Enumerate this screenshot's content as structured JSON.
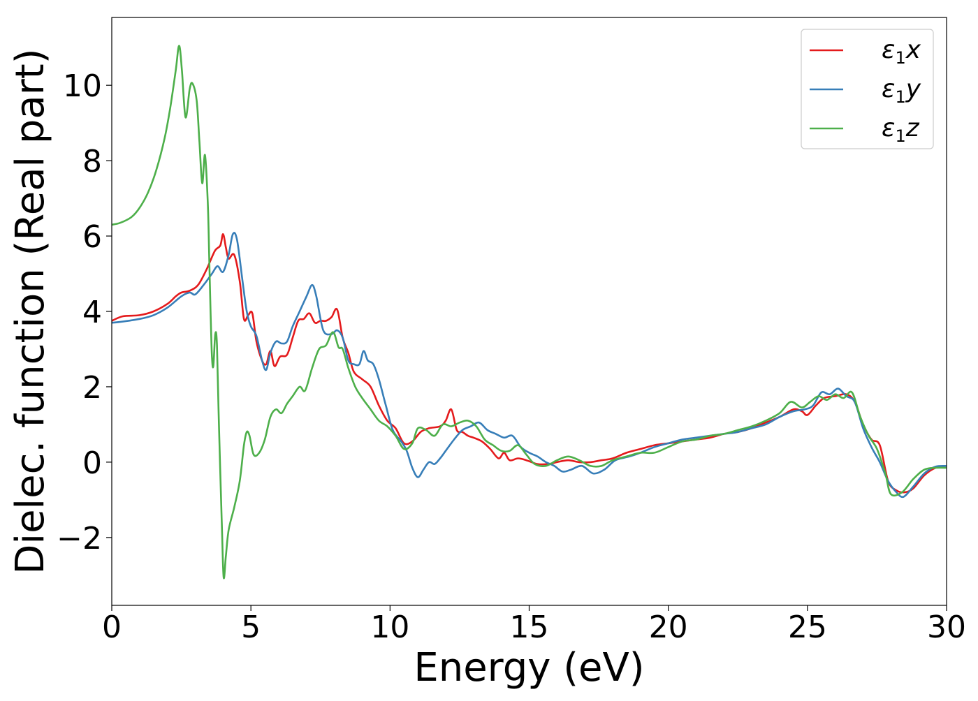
{
  "chart_data": {
    "type": "line",
    "title": "",
    "xlabel": "Energy (eV)",
    "ylabel": "Dielec. function (Real part)",
    "xlim": [
      0,
      30
    ],
    "ylim": [
      -3.8,
      11.8
    ],
    "xticks": [
      0,
      5,
      10,
      15,
      20,
      25,
      30
    ],
    "xtick_labels": [
      "0",
      "5",
      "10",
      "15",
      "20",
      "25",
      "30"
    ],
    "yticks": [
      -2,
      0,
      2,
      4,
      6,
      8,
      10
    ],
    "ytick_labels": [
      "−2",
      "0",
      "2",
      "4",
      "6",
      "8",
      "10"
    ],
    "grid": false,
    "legend_position": "top-right",
    "series": [
      {
        "name": "ε₁x",
        "legend_base": "ε",
        "legend_sub": "1",
        "legend_var": "x",
        "color": "#e41a1c",
        "points": [
          [
            0,
            3.75
          ],
          [
            0.4,
            3.87
          ],
          [
            1,
            3.9
          ],
          [
            1.5,
            4.0
          ],
          [
            2,
            4.2
          ],
          [
            2.3,
            4.4
          ],
          [
            2.5,
            4.5
          ],
          [
            2.8,
            4.55
          ],
          [
            3.1,
            4.7
          ],
          [
            3.4,
            5.1
          ],
          [
            3.7,
            5.6
          ],
          [
            3.9,
            5.75
          ],
          [
            4.0,
            6.05
          ],
          [
            4.1,
            5.7
          ],
          [
            4.2,
            5.4
          ],
          [
            4.4,
            5.5
          ],
          [
            4.6,
            4.8
          ],
          [
            4.75,
            3.8
          ],
          [
            4.9,
            3.9
          ],
          [
            5.05,
            3.95
          ],
          [
            5.2,
            3.2
          ],
          [
            5.4,
            2.7
          ],
          [
            5.55,
            2.6
          ],
          [
            5.7,
            2.95
          ],
          [
            5.85,
            2.55
          ],
          [
            6.05,
            2.8
          ],
          [
            6.3,
            2.85
          ],
          [
            6.5,
            3.3
          ],
          [
            6.7,
            3.75
          ],
          [
            6.9,
            3.8
          ],
          [
            7.1,
            3.95
          ],
          [
            7.3,
            3.7
          ],
          [
            7.5,
            3.75
          ],
          [
            7.7,
            3.75
          ],
          [
            7.9,
            3.85
          ],
          [
            8.1,
            4.05
          ],
          [
            8.3,
            3.3
          ],
          [
            8.5,
            2.9
          ],
          [
            8.7,
            2.4
          ],
          [
            9.0,
            2.2
          ],
          [
            9.3,
            2.0
          ],
          [
            9.6,
            1.5
          ],
          [
            9.9,
            1.1
          ],
          [
            10.2,
            0.9
          ],
          [
            10.5,
            0.5
          ],
          [
            10.8,
            0.55
          ],
          [
            11.1,
            0.8
          ],
          [
            11.4,
            0.9
          ],
          [
            11.8,
            0.95
          ],
          [
            12.0,
            1.1
          ],
          [
            12.2,
            1.4
          ],
          [
            12.4,
            0.85
          ],
          [
            12.6,
            0.8
          ],
          [
            12.8,
            0.7
          ],
          [
            13.0,
            0.65
          ],
          [
            13.3,
            0.55
          ],
          [
            13.6,
            0.35
          ],
          [
            13.9,
            0.1
          ],
          [
            14.1,
            0.25
          ],
          [
            14.3,
            0.05
          ],
          [
            14.6,
            0.1
          ],
          [
            14.9,
            0.05
          ],
          [
            15.3,
            -0.05
          ],
          [
            15.7,
            -0.05
          ],
          [
            16.0,
            0.0
          ],
          [
            16.4,
            0.05
          ],
          [
            16.8,
            0.0
          ],
          [
            17.2,
            0.0
          ],
          [
            17.6,
            0.05
          ],
          [
            18.0,
            0.1
          ],
          [
            18.5,
            0.25
          ],
          [
            19.0,
            0.35
          ],
          [
            19.5,
            0.45
          ],
          [
            20.0,
            0.5
          ],
          [
            20.5,
            0.55
          ],
          [
            21.0,
            0.6
          ],
          [
            21.5,
            0.65
          ],
          [
            22.0,
            0.75
          ],
          [
            22.5,
            0.8
          ],
          [
            23.0,
            0.9
          ],
          [
            23.5,
            1.05
          ],
          [
            24.0,
            1.2
          ],
          [
            24.5,
            1.4
          ],
          [
            24.8,
            1.35
          ],
          [
            25.0,
            1.25
          ],
          [
            25.3,
            1.5
          ],
          [
            25.6,
            1.7
          ],
          [
            26.0,
            1.75
          ],
          [
            26.4,
            1.8
          ],
          [
            26.7,
            1.6
          ],
          [
            27.0,
            1.0
          ],
          [
            27.3,
            0.6
          ],
          [
            27.6,
            0.45
          ],
          [
            27.9,
            -0.5
          ],
          [
            28.2,
            -0.75
          ],
          [
            28.5,
            -0.8
          ],
          [
            28.8,
            -0.7
          ],
          [
            29.2,
            -0.35
          ],
          [
            29.6,
            -0.15
          ],
          [
            30,
            -0.1
          ]
        ]
      },
      {
        "name": "ε₁y",
        "legend_base": "ε",
        "legend_sub": "1",
        "legend_var": "y",
        "color": "#377eb8",
        "points": [
          [
            0,
            3.7
          ],
          [
            0.3,
            3.72
          ],
          [
            1,
            3.8
          ],
          [
            1.5,
            3.9
          ],
          [
            2,
            4.1
          ],
          [
            2.5,
            4.4
          ],
          [
            2.8,
            4.5
          ],
          [
            3.0,
            4.45
          ],
          [
            3.3,
            4.7
          ],
          [
            3.6,
            5.0
          ],
          [
            3.8,
            5.2
          ],
          [
            4.0,
            5.05
          ],
          [
            4.2,
            5.5
          ],
          [
            4.35,
            6.05
          ],
          [
            4.5,
            5.9
          ],
          [
            4.7,
            4.8
          ],
          [
            4.85,
            4.0
          ],
          [
            5.0,
            3.6
          ],
          [
            5.2,
            3.35
          ],
          [
            5.4,
            2.7
          ],
          [
            5.55,
            2.45
          ],
          [
            5.7,
            2.9
          ],
          [
            5.9,
            3.2
          ],
          [
            6.1,
            3.15
          ],
          [
            6.3,
            3.2
          ],
          [
            6.5,
            3.6
          ],
          [
            6.75,
            4.0
          ],
          [
            7.0,
            4.4
          ],
          [
            7.2,
            4.7
          ],
          [
            7.35,
            4.4
          ],
          [
            7.6,
            3.5
          ],
          [
            7.9,
            3.4
          ],
          [
            8.1,
            3.5
          ],
          [
            8.3,
            3.3
          ],
          [
            8.5,
            2.7
          ],
          [
            8.7,
            2.6
          ],
          [
            8.9,
            2.6
          ],
          [
            9.05,
            2.95
          ],
          [
            9.2,
            2.7
          ],
          [
            9.4,
            2.6
          ],
          [
            9.6,
            2.2
          ],
          [
            9.85,
            1.5
          ],
          [
            10.1,
            0.85
          ],
          [
            10.4,
            0.55
          ],
          [
            10.6,
            0.3
          ],
          [
            10.8,
            -0.15
          ],
          [
            11.0,
            -0.4
          ],
          [
            11.2,
            -0.2
          ],
          [
            11.4,
            0.0
          ],
          [
            11.6,
            -0.05
          ],
          [
            11.8,
            0.1
          ],
          [
            12.0,
            0.3
          ],
          [
            12.3,
            0.6
          ],
          [
            12.6,
            0.85
          ],
          [
            12.9,
            0.95
          ],
          [
            13.2,
            1.05
          ],
          [
            13.5,
            0.85
          ],
          [
            13.8,
            0.75
          ],
          [
            14.1,
            0.65
          ],
          [
            14.4,
            0.7
          ],
          [
            14.7,
            0.4
          ],
          [
            15.0,
            0.25
          ],
          [
            15.3,
            0.15
          ],
          [
            15.6,
            0.0
          ],
          [
            15.9,
            -0.1
          ],
          [
            16.2,
            -0.25
          ],
          [
            16.5,
            -0.2
          ],
          [
            16.9,
            -0.1
          ],
          [
            17.3,
            -0.3
          ],
          [
            17.7,
            -0.2
          ],
          [
            18.1,
            0.05
          ],
          [
            18.6,
            0.15
          ],
          [
            19.0,
            0.25
          ],
          [
            19.5,
            0.4
          ],
          [
            20.0,
            0.5
          ],
          [
            20.5,
            0.6
          ],
          [
            21.0,
            0.65
          ],
          [
            21.5,
            0.7
          ],
          [
            22.0,
            0.75
          ],
          [
            22.5,
            0.8
          ],
          [
            23.0,
            0.9
          ],
          [
            23.5,
            1.0
          ],
          [
            24.0,
            1.2
          ],
          [
            24.5,
            1.35
          ],
          [
            24.9,
            1.4
          ],
          [
            25.2,
            1.5
          ],
          [
            25.5,
            1.85
          ],
          [
            25.8,
            1.8
          ],
          [
            26.1,
            1.95
          ],
          [
            26.4,
            1.75
          ],
          [
            26.7,
            1.6
          ],
          [
            27.0,
            0.9
          ],
          [
            27.3,
            0.4
          ],
          [
            27.6,
            0.0
          ],
          [
            27.9,
            -0.5
          ],
          [
            28.2,
            -0.8
          ],
          [
            28.45,
            -0.92
          ],
          [
            28.8,
            -0.65
          ],
          [
            29.2,
            -0.3
          ],
          [
            29.6,
            -0.12
          ],
          [
            30,
            -0.1
          ]
        ]
      },
      {
        "name": "ε₁z",
        "legend_base": "ε",
        "legend_sub": "1",
        "legend_var": "z",
        "color": "#4daf4a",
        "points": [
          [
            0,
            6.3
          ],
          [
            0.3,
            6.35
          ],
          [
            0.7,
            6.5
          ],
          [
            1.0,
            6.75
          ],
          [
            1.3,
            7.15
          ],
          [
            1.6,
            7.75
          ],
          [
            1.9,
            8.6
          ],
          [
            2.1,
            9.4
          ],
          [
            2.3,
            10.4
          ],
          [
            2.42,
            11.05
          ],
          [
            2.52,
            10.4
          ],
          [
            2.65,
            9.15
          ],
          [
            2.8,
            9.9
          ],
          [
            2.9,
            10.05
          ],
          [
            3.05,
            9.6
          ],
          [
            3.15,
            8.5
          ],
          [
            3.25,
            7.4
          ],
          [
            3.35,
            8.15
          ],
          [
            3.45,
            6.9
          ],
          [
            3.5,
            5.5
          ],
          [
            3.55,
            4.0
          ],
          [
            3.6,
            2.8
          ],
          [
            3.65,
            2.55
          ],
          [
            3.72,
            3.4
          ],
          [
            3.78,
            3.1
          ],
          [
            3.85,
            1.0
          ],
          [
            3.95,
            -1.5
          ],
          [
            4.02,
            -3.05
          ],
          [
            4.1,
            -2.5
          ],
          [
            4.2,
            -1.8
          ],
          [
            4.4,
            -1.2
          ],
          [
            4.6,
            -0.5
          ],
          [
            4.75,
            0.45
          ],
          [
            4.85,
            0.8
          ],
          [
            4.95,
            0.7
          ],
          [
            5.1,
            0.2
          ],
          [
            5.3,
            0.25
          ],
          [
            5.5,
            0.6
          ],
          [
            5.7,
            1.2
          ],
          [
            5.9,
            1.4
          ],
          [
            6.1,
            1.3
          ],
          [
            6.3,
            1.55
          ],
          [
            6.5,
            1.75
          ],
          [
            6.75,
            2.0
          ],
          [
            6.95,
            1.9
          ],
          [
            7.2,
            2.5
          ],
          [
            7.45,
            3.0
          ],
          [
            7.7,
            3.1
          ],
          [
            7.95,
            3.45
          ],
          [
            8.15,
            3.05
          ],
          [
            8.3,
            3.0
          ],
          [
            8.5,
            2.5
          ],
          [
            8.75,
            2.0
          ],
          [
            9.0,
            1.7
          ],
          [
            9.3,
            1.4
          ],
          [
            9.6,
            1.1
          ],
          [
            9.9,
            0.95
          ],
          [
            10.2,
            0.7
          ],
          [
            10.5,
            0.35
          ],
          [
            10.8,
            0.5
          ],
          [
            11.0,
            0.9
          ],
          [
            11.3,
            0.85
          ],
          [
            11.6,
            0.7
          ],
          [
            11.9,
            1.0
          ],
          [
            12.2,
            0.95
          ],
          [
            12.5,
            1.05
          ],
          [
            12.8,
            1.1
          ],
          [
            13.1,
            0.95
          ],
          [
            13.4,
            0.6
          ],
          [
            13.7,
            0.45
          ],
          [
            14.0,
            0.3
          ],
          [
            14.3,
            0.3
          ],
          [
            14.6,
            0.45
          ],
          [
            14.9,
            0.2
          ],
          [
            15.2,
            -0.05
          ],
          [
            15.6,
            -0.1
          ],
          [
            16.0,
            0.05
          ],
          [
            16.4,
            0.15
          ],
          [
            16.8,
            0.05
          ],
          [
            17.2,
            -0.1
          ],
          [
            17.6,
            -0.1
          ],
          [
            18.0,
            0.05
          ],
          [
            18.5,
            0.15
          ],
          [
            19.0,
            0.25
          ],
          [
            19.5,
            0.25
          ],
          [
            20.0,
            0.4
          ],
          [
            20.5,
            0.55
          ],
          [
            21.0,
            0.6
          ],
          [
            21.5,
            0.7
          ],
          [
            22.0,
            0.75
          ],
          [
            22.5,
            0.85
          ],
          [
            23.0,
            0.95
          ],
          [
            23.5,
            1.1
          ],
          [
            24.0,
            1.3
          ],
          [
            24.4,
            1.6
          ],
          [
            24.8,
            1.45
          ],
          [
            25.1,
            1.6
          ],
          [
            25.4,
            1.75
          ],
          [
            25.7,
            1.65
          ],
          [
            26.0,
            1.8
          ],
          [
            26.3,
            1.7
          ],
          [
            26.6,
            1.85
          ],
          [
            26.9,
            1.2
          ],
          [
            27.2,
            0.7
          ],
          [
            27.5,
            0.35
          ],
          [
            27.8,
            -0.3
          ],
          [
            28.0,
            -0.85
          ],
          [
            28.4,
            -0.8
          ],
          [
            28.8,
            -0.45
          ],
          [
            29.2,
            -0.2
          ],
          [
            29.6,
            -0.15
          ],
          [
            30,
            -0.15
          ]
        ]
      }
    ]
  }
}
